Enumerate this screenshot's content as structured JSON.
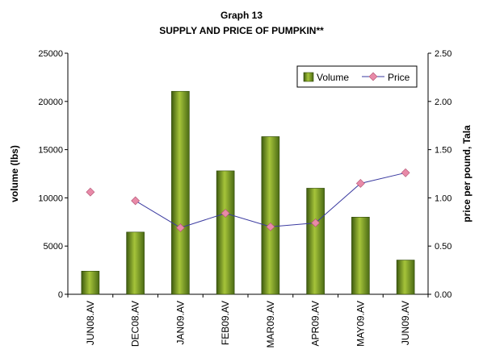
{
  "chart_data": {
    "type": "bar+line",
    "title": "Graph 13",
    "subtitle": "SUPPLY AND PRICE OF PUMPKIN**",
    "categories": [
      "JUN08.AV",
      "DEC08.AV",
      "JAN09.AV",
      "FEB09.AV",
      "MAR09.AV",
      "APR09.AV",
      "MAY09.AV",
      "JUN09.AV"
    ],
    "series": [
      {
        "name": "Volume",
        "type": "bar",
        "axis": "left",
        "values": [
          2400,
          6450,
          21050,
          12800,
          16350,
          11000,
          8000,
          3550
        ],
        "color": "#6b8e23"
      },
      {
        "name": "Price",
        "type": "line",
        "axis": "right",
        "values": [
          1.06,
          0.97,
          0.69,
          0.84,
          0.7,
          0.74,
          1.15,
          1.26
        ],
        "color": "#e88aa8",
        "line_color": "#3a3aa0"
      }
    ],
    "ylabel": "volume (lbs)",
    "y2label": "price per pound, Tala",
    "ylim": [
      0,
      25000
    ],
    "y2lim": [
      0,
      2.5
    ],
    "yticks": [
      "0",
      "5000",
      "10000",
      "15000",
      "20000",
      "25000"
    ],
    "y2ticks": [
      "0.00",
      "0.50",
      "1.00",
      "1.50",
      "2.00",
      "2.50"
    ],
    "grid": false,
    "legend_placement": "top-right"
  }
}
